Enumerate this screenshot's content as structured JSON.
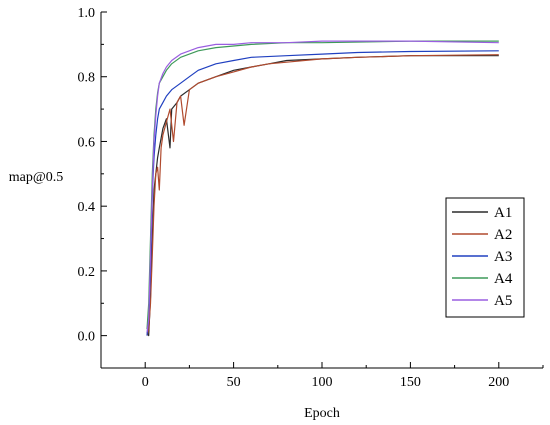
{
  "chart_data": {
    "type": "line",
    "title": "",
    "xlabel": "Epoch",
    "ylabel": "map@0.5",
    "xlim": [
      -25,
      225
    ],
    "ylim": [
      -0.1,
      1.0
    ],
    "xticks": [
      0,
      50,
      100,
      150,
      200
    ],
    "yticks": [
      0.0,
      0.2,
      0.4,
      0.6,
      0.8,
      1.0
    ],
    "xtick_labels": [
      "0",
      "50",
      "100",
      "150",
      "200"
    ],
    "ytick_labels": [
      "0.0",
      "0.2",
      "0.4",
      "0.6",
      "0.8",
      "1.0"
    ],
    "grid": false,
    "legend_position": "center-right",
    "series": [
      {
        "name": "A1",
        "color": "#2b2b2b",
        "points": [
          [
            1,
            0.01
          ],
          [
            2,
            0.0
          ],
          [
            3,
            0.12
          ],
          [
            4,
            0.3
          ],
          [
            5,
            0.45
          ],
          [
            6,
            0.5
          ],
          [
            7,
            0.55
          ],
          [
            8,
            0.58
          ],
          [
            9,
            0.61
          ],
          [
            10,
            0.64
          ],
          [
            12,
            0.67
          ],
          [
            14,
            0.58
          ],
          [
            15,
            0.7
          ],
          [
            18,
            0.72
          ],
          [
            20,
            0.74
          ],
          [
            25,
            0.76
          ],
          [
            30,
            0.78
          ],
          [
            40,
            0.8
          ],
          [
            50,
            0.82
          ],
          [
            60,
            0.83
          ],
          [
            70,
            0.84
          ],
          [
            80,
            0.85
          ],
          [
            100,
            0.855
          ],
          [
            120,
            0.86
          ],
          [
            150,
            0.865
          ],
          [
            200,
            0.865
          ]
        ]
      },
      {
        "name": "A2",
        "color": "#b04a2e",
        "points": [
          [
            1,
            0.0
          ],
          [
            2,
            0.02
          ],
          [
            3,
            0.1
          ],
          [
            4,
            0.25
          ],
          [
            5,
            0.4
          ],
          [
            6,
            0.5
          ],
          [
            7,
            0.52
          ],
          [
            8,
            0.45
          ],
          [
            9,
            0.58
          ],
          [
            10,
            0.62
          ],
          [
            12,
            0.66
          ],
          [
            14,
            0.7
          ],
          [
            16,
            0.6
          ],
          [
            18,
            0.72
          ],
          [
            20,
            0.74
          ],
          [
            22,
            0.65
          ],
          [
            25,
            0.76
          ],
          [
            30,
            0.78
          ],
          [
            40,
            0.8
          ],
          [
            50,
            0.815
          ],
          [
            60,
            0.83
          ],
          [
            70,
            0.84
          ],
          [
            80,
            0.845
          ],
          [
            100,
            0.855
          ],
          [
            120,
            0.86
          ],
          [
            150,
            0.865
          ],
          [
            200,
            0.868
          ]
        ]
      },
      {
        "name": "A3",
        "color": "#2040c0",
        "points": [
          [
            1,
            0.0
          ],
          [
            2,
            0.05
          ],
          [
            3,
            0.2
          ],
          [
            4,
            0.44
          ],
          [
            5,
            0.55
          ],
          [
            6,
            0.62
          ],
          [
            7,
            0.67
          ],
          [
            8,
            0.7
          ],
          [
            10,
            0.72
          ],
          [
            12,
            0.74
          ],
          [
            15,
            0.76
          ],
          [
            20,
            0.78
          ],
          [
            25,
            0.8
          ],
          [
            30,
            0.82
          ],
          [
            40,
            0.84
          ],
          [
            50,
            0.85
          ],
          [
            60,
            0.86
          ],
          [
            80,
            0.865
          ],
          [
            100,
            0.87
          ],
          [
            120,
            0.875
          ],
          [
            150,
            0.878
          ],
          [
            200,
            0.88
          ]
        ]
      },
      {
        "name": "A4",
        "color": "#3f9a5a",
        "points": [
          [
            1,
            0.02
          ],
          [
            2,
            0.1
          ],
          [
            3,
            0.3
          ],
          [
            4,
            0.5
          ],
          [
            5,
            0.62
          ],
          [
            6,
            0.7
          ],
          [
            7,
            0.75
          ],
          [
            8,
            0.78
          ],
          [
            10,
            0.8
          ],
          [
            12,
            0.82
          ],
          [
            15,
            0.84
          ],
          [
            20,
            0.86
          ],
          [
            25,
            0.87
          ],
          [
            30,
            0.88
          ],
          [
            40,
            0.89
          ],
          [
            50,
            0.895
          ],
          [
            60,
            0.9
          ],
          [
            80,
            0.905
          ],
          [
            100,
            0.905
          ],
          [
            150,
            0.91
          ],
          [
            200,
            0.91
          ]
        ]
      },
      {
        "name": "A5",
        "color": "#9a5ee0",
        "points": [
          [
            1,
            0.01
          ],
          [
            2,
            0.05
          ],
          [
            3,
            0.25
          ],
          [
            4,
            0.45
          ],
          [
            5,
            0.6
          ],
          [
            6,
            0.68
          ],
          [
            7,
            0.74
          ],
          [
            8,
            0.78
          ],
          [
            10,
            0.81
          ],
          [
            12,
            0.83
          ],
          [
            15,
            0.85
          ],
          [
            20,
            0.87
          ],
          [
            25,
            0.88
          ],
          [
            30,
            0.89
          ],
          [
            40,
            0.9
          ],
          [
            50,
            0.9
          ],
          [
            60,
            0.905
          ],
          [
            80,
            0.905
          ],
          [
            100,
            0.91
          ],
          [
            150,
            0.91
          ],
          [
            200,
            0.905
          ]
        ]
      }
    ]
  }
}
